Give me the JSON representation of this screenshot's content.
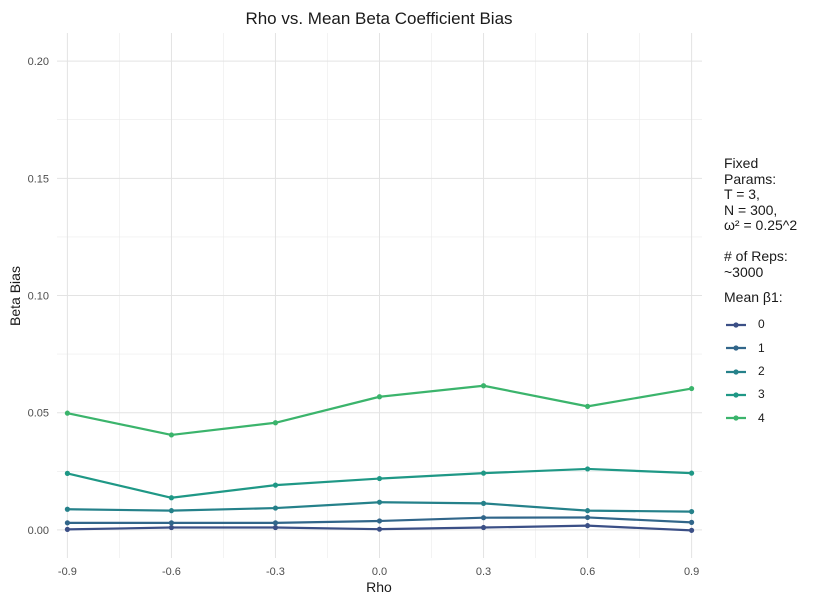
{
  "chart_data": {
    "type": "line",
    "title": "Rho vs. Mean Beta Coefficient Bias",
    "xlabel": "Rho",
    "ylabel": "Beta Bias",
    "x": [
      -0.9,
      -0.6,
      -0.3,
      0.0,
      0.3,
      0.6,
      0.9
    ],
    "x_ticks": [
      "-0.9",
      "-0.6",
      "-0.3",
      "0.0",
      "0.3",
      "0.6",
      "0.9"
    ],
    "y_ticks": [
      "0.00",
      "0.05",
      "0.10",
      "0.15",
      "0.20"
    ],
    "ylim": [
      -0.012,
      0.212
    ],
    "xlim": [
      -0.93,
      0.93
    ],
    "grid": true,
    "legend_position": "right",
    "legend_caption": "Fixed\nParams:\nT = 3,\nN = 300,\nω² = 0.25^2\n\n# of Reps:\n~3000",
    "legend_title": "Mean β1:",
    "series": [
      {
        "name": "0",
        "color": "#3b4f86",
        "values": [
          0.0002,
          0.001,
          0.001,
          0.0003,
          0.001,
          0.0018,
          -0.0002
        ]
      },
      {
        "name": "1",
        "color": "#31668a",
        "values": [
          0.003,
          0.003,
          0.003,
          0.0038,
          0.0052,
          0.0053,
          0.0032
        ]
      },
      {
        "name": "2",
        "color": "#25818a",
        "values": [
          0.0088,
          0.0082,
          0.0093,
          0.0118,
          0.0113,
          0.0082,
          0.0078
        ]
      },
      {
        "name": "3",
        "color": "#1f9886",
        "values": [
          0.0241,
          0.0137,
          0.0191,
          0.0219,
          0.0242,
          0.026,
          0.0242
        ]
      },
      {
        "name": "4",
        "color": "#3bb46c",
        "values": [
          0.0498,
          0.0405,
          0.0457,
          0.0568,
          0.0615,
          0.0527,
          0.0603
        ]
      }
    ]
  }
}
